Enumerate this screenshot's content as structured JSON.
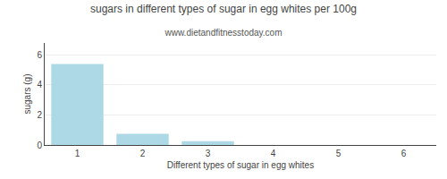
{
  "chart_data": {
    "type": "bar",
    "title": "sugars in different types of sugar in egg whites per 100g",
    "subtitle": "www.dietandfitnesstoday.com",
    "xlabel": "Different types of sugar in egg whites",
    "ylabel": "sugars (g)",
    "x": [
      1,
      2,
      3
    ],
    "values": [
      5.4,
      0.75,
      0.25
    ],
    "color": "#add8e6",
    "xlim": [
      0.5,
      6.5
    ],
    "xticks": [
      1,
      2,
      3,
      4,
      5,
      6
    ],
    "ylim": [
      0,
      6.8
    ],
    "yticks": [
      0,
      2,
      4,
      6
    ],
    "grid": true
  }
}
